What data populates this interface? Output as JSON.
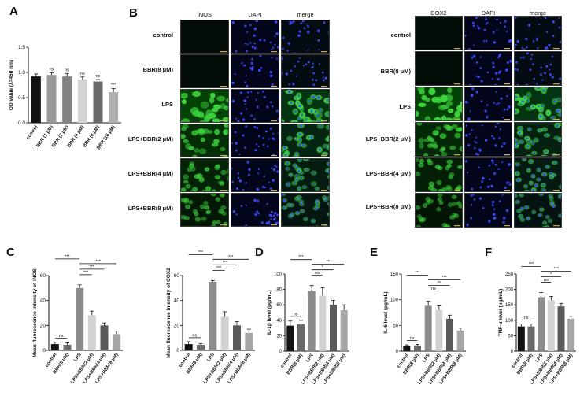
{
  "panel_letters": [
    "A",
    "B",
    "C",
    "D",
    "E",
    "F"
  ],
  "microscopy": {
    "inos_block": {
      "headers": [
        "iNOS",
        "DAPI",
        "merge"
      ]
    },
    "cox2_block": {
      "headers": [
        "COX2",
        "DAPI",
        "merge"
      ]
    },
    "rows": [
      "control",
      "BBR(8 μM)",
      "LPS",
      "LPS+BBR(2 μM)",
      "LPS+BBR(4 μM)",
      "LPS+BBR(8 μM)"
    ],
    "green_intensity": {
      "inos": [
        0.03,
        0.04,
        0.95,
        0.6,
        0.4,
        0.25
      ],
      "cox2": [
        0.03,
        0.03,
        0.95,
        0.5,
        0.35,
        0.2
      ]
    },
    "colors": {
      "green": "#3cd23c",
      "blue": "#3c4cff",
      "tile_bg": "#040a06"
    }
  },
  "chart_data": [
    {
      "id": "A",
      "type": "bar",
      "categories": [
        "control",
        "BBR (1 μM)",
        "BBR (2 μM)",
        "BBR (4 μM)",
        "BBR (8 μM)",
        "BBR (16 μM)"
      ],
      "values": [
        0.92,
        0.95,
        0.92,
        0.86,
        0.82,
        0.61
      ],
      "errors": [
        0.05,
        0.04,
        0.06,
        0.05,
        0.04,
        0.07
      ],
      "ylabel": "OD value (λ=450 nm)",
      "ylim": [
        0,
        1.5
      ],
      "yticks": [
        0.0,
        0.5,
        1.0,
        1.5
      ],
      "significance_above_bar": [
        "",
        "ns",
        "ns",
        "ns",
        "ns",
        "***"
      ],
      "brackets": [],
      "colors": [
        "#111111",
        "#9a9a9a",
        "#828282",
        "#d2d2d2",
        "#6a6a6a",
        "#b0b0b0"
      ]
    },
    {
      "id": "C1",
      "type": "bar",
      "categories": [
        "control",
        "BBR(8 μM)",
        "LPS",
        "LPS+BBR(2 μM)",
        "LPS+BBR(4 μM)",
        "LPS+BBR(8 μM)"
      ],
      "values": [
        5,
        4.5,
        50,
        28,
        20,
        13
      ],
      "errors": [
        1.5,
        1.5,
        2.5,
        3.5,
        2,
        2.5
      ],
      "ylabel": "Mean fluorescence intensity of iNOS",
      "ylim": [
        0,
        60
      ],
      "yticks": [
        0,
        20,
        40,
        60
      ],
      "brackets": [
        {
          "from": 0,
          "to": 1,
          "label": "ns"
        },
        {
          "from": 0,
          "to": 2,
          "label": "***"
        },
        {
          "from": 2,
          "to": 3,
          "label": "***"
        },
        {
          "from": 2,
          "to": 4,
          "label": "***"
        },
        {
          "from": 2,
          "to": 5,
          "label": "***"
        }
      ],
      "colors": [
        "#111111",
        "#6a6a6a",
        "#8c8c8c",
        "#d2d2d2",
        "#5a5a5a",
        "#a6a6a6"
      ]
    },
    {
      "id": "C2",
      "type": "bar",
      "categories": [
        "control",
        "BBR(8 μM)",
        "LPS",
        "LPS+BBR(2 μM)",
        "LPS+BBR(4 μM)",
        "LPS+BBR(8 μM)"
      ],
      "values": [
        5,
        4.5,
        55,
        27,
        20,
        14
      ],
      "errors": [
        2,
        1,
        1,
        4,
        3,
        3
      ],
      "ylabel": "Mean fluorescence intensity of COX2",
      "ylim": [
        0,
        60
      ],
      "yticks": [
        0,
        20,
        40,
        60
      ],
      "brackets": [
        {
          "from": 0,
          "to": 1,
          "label": "ns"
        },
        {
          "from": 0,
          "to": 2,
          "label": "***"
        },
        {
          "from": 2,
          "to": 3,
          "label": "***"
        },
        {
          "from": 2,
          "to": 4,
          "label": "***"
        },
        {
          "from": 2,
          "to": 5,
          "label": "***"
        }
      ],
      "colors": [
        "#111111",
        "#6a6a6a",
        "#8c8c8c",
        "#d2d2d2",
        "#5a5a5a",
        "#a6a6a6"
      ]
    },
    {
      "id": "D",
      "type": "bar",
      "categories": [
        "control",
        "BBR(8 μM)",
        "LPS",
        "LPS+BBR(2 μM)",
        "LPS+BBR(4 μM)",
        "LPS+BBR(8 μM)"
      ],
      "values": [
        33,
        35,
        78,
        72,
        60,
        53
      ],
      "errors": [
        6,
        5,
        7,
        10,
        6,
        7
      ],
      "ylabel": "IL-1β level (pg/mL)",
      "ylim": [
        0,
        100
      ],
      "yticks": [
        0,
        20,
        40,
        60,
        80,
        100
      ],
      "brackets": [
        {
          "from": 0,
          "to": 1,
          "label": "ns"
        },
        {
          "from": 0,
          "to": 2,
          "label": "***"
        },
        {
          "from": 2,
          "to": 3,
          "label": "ns"
        },
        {
          "from": 2,
          "to": 4,
          "label": "*"
        },
        {
          "from": 2,
          "to": 5,
          "label": "**"
        }
      ],
      "colors": [
        "#111111",
        "#6a6a6a",
        "#8c8c8c",
        "#d2d2d2",
        "#5a5a5a",
        "#a6a6a6"
      ]
    },
    {
      "id": "E",
      "type": "bar",
      "categories": [
        "control",
        "BBR(8 μM)",
        "LPS",
        "LPS+BBR(2 μM)",
        "LPS+BBR(4 μM)",
        "LPS+BBR(8 μM)"
      ],
      "values": [
        10,
        11,
        88,
        80,
        63,
        40
      ],
      "errors": [
        2,
        2,
        9,
        8,
        7,
        5
      ],
      "ylabel": "IL-6 level (pg/mL)",
      "ylim": [
        0,
        150
      ],
      "yticks": [
        0,
        50,
        100,
        150
      ],
      "brackets": [
        {
          "from": 0,
          "to": 1,
          "label": "ns"
        },
        {
          "from": 0,
          "to": 2,
          "label": "***"
        },
        {
          "from": 2,
          "to": 3,
          "label": "ns"
        },
        {
          "from": 2,
          "to": 4,
          "label": "**"
        },
        {
          "from": 2,
          "to": 5,
          "label": "***"
        }
      ],
      "colors": [
        "#111111",
        "#6a6a6a",
        "#8c8c8c",
        "#d2d2d2",
        "#5a5a5a",
        "#a6a6a6"
      ]
    },
    {
      "id": "F",
      "type": "bar",
      "categories": [
        "control",
        "BBR(8 μM)",
        "LPS",
        "LPS+BBR(2 μM)",
        "LPS+BBR(4 μM)",
        "LPS+BBR(8 μM)"
      ],
      "values": [
        80,
        80,
        175,
        165,
        145,
        105
      ],
      "errors": [
        8,
        8,
        15,
        12,
        10,
        8
      ],
      "ylabel": "TNF-α level (pg/mL)",
      "ylim": [
        0,
        250
      ],
      "yticks": [
        0,
        50,
        100,
        150,
        200,
        250
      ],
      "brackets": [
        {
          "from": 0,
          "to": 1,
          "label": "ns"
        },
        {
          "from": 0,
          "to": 2,
          "label": "***"
        },
        {
          "from": 2,
          "to": 3,
          "label": "ns"
        },
        {
          "from": 2,
          "to": 4,
          "label": "*"
        },
        {
          "from": 2,
          "to": 5,
          "label": "***"
        }
      ],
      "colors": [
        "#111111",
        "#6a6a6a",
        "#8c8c8c",
        "#d2d2d2",
        "#5a5a5a",
        "#a6a6a6"
      ]
    }
  ]
}
